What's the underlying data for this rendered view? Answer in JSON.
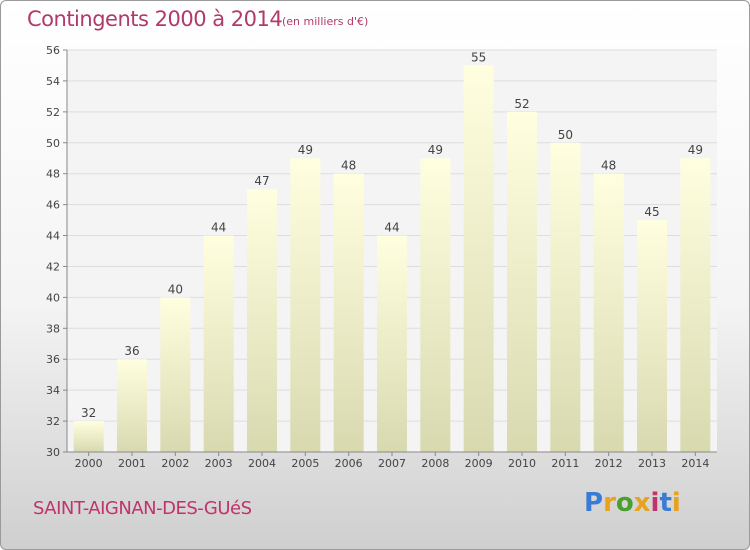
{
  "title": "Contingents 2000 à 2014",
  "subtitle": "(en milliers d'€)",
  "place": "SAINT-AIGNAN-DES-GUéS",
  "logo": {
    "text": "Proxiti",
    "colors": [
      "#3a7bd5",
      "#e8a21e",
      "#4aa02c",
      "#e8a21e",
      "#c0336b",
      "#3a7bd5",
      "#e8a21e"
    ]
  },
  "chart_data": {
    "type": "bar",
    "categories": [
      "2000",
      "2001",
      "2002",
      "2003",
      "2004",
      "2005",
      "2006",
      "2007",
      "2008",
      "2009",
      "2010",
      "2011",
      "2012",
      "2013",
      "2014"
    ],
    "values": [
      32,
      36,
      40,
      44,
      47,
      49,
      48,
      44,
      49,
      55,
      52,
      50,
      48,
      45,
      49
    ],
    "data_labels": [
      "32",
      "36",
      "40",
      "44",
      "47",
      "49",
      "48",
      "44",
      "49",
      "55",
      "52",
      "50",
      "48",
      "45",
      "49"
    ],
    "ylim": [
      30,
      56
    ],
    "yticks": [
      30,
      32,
      34,
      36,
      38,
      40,
      42,
      44,
      46,
      48,
      50,
      52,
      54,
      56
    ],
    "grid": true,
    "bar_color_top": "#ffffe0",
    "bar_color_bottom": "#d9d9b0",
    "plot_background": "#f4f4f4",
    "grid_color": "#dddddd"
  }
}
